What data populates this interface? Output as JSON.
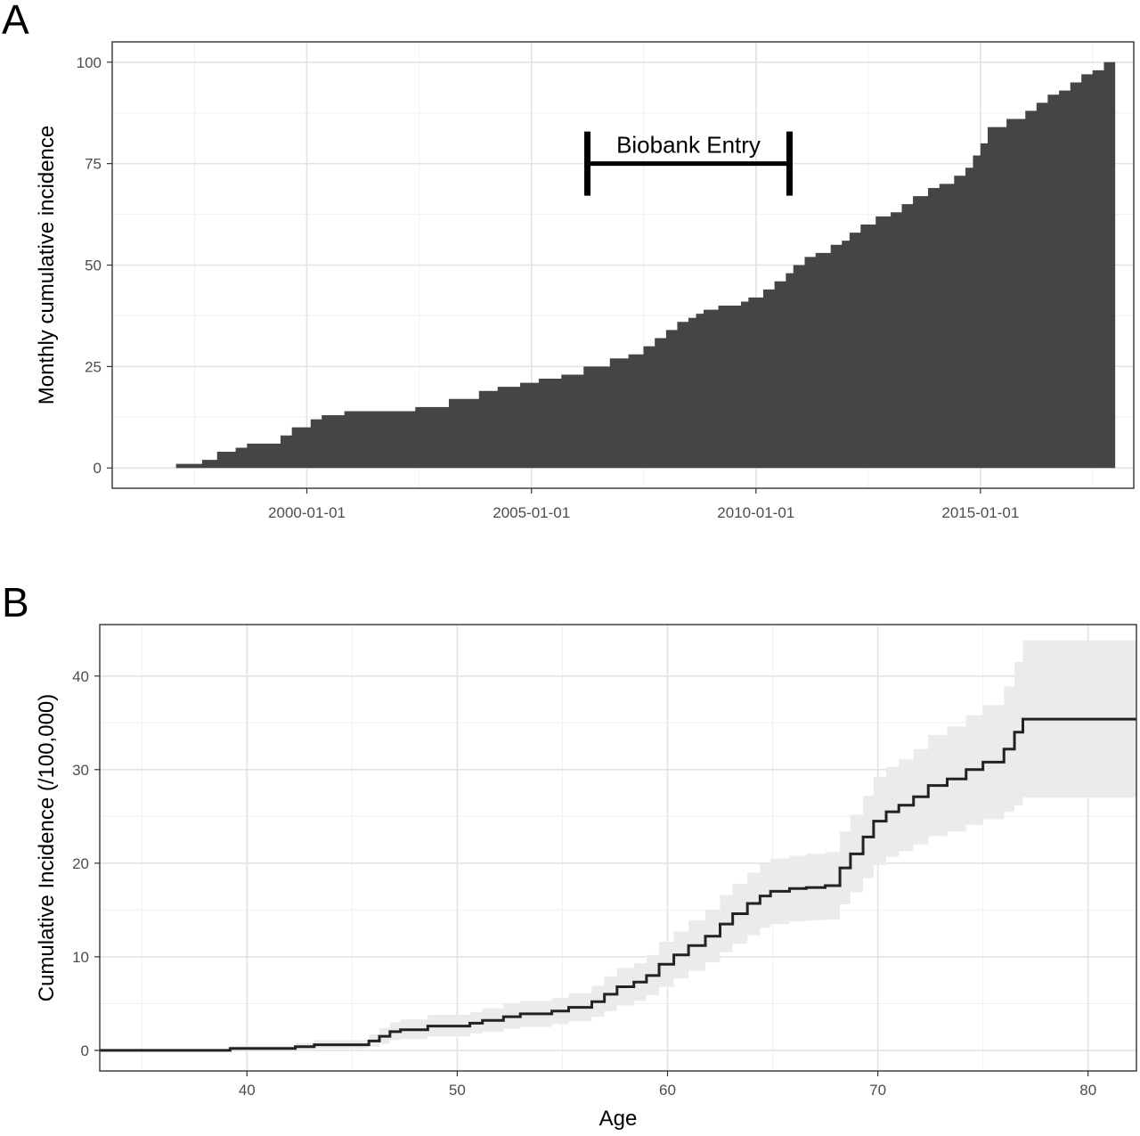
{
  "chart_data": [
    {
      "id": "A",
      "panel_label": "A",
      "type": "area",
      "style": "step",
      "ylabel": "Monthly cumulative incidence",
      "xlabel": "",
      "x_ticks": [
        "2000-01-01",
        "2005-01-01",
        "2010-01-01",
        "2015-01-01"
      ],
      "y_ticks": [
        "0",
        "25",
        "50",
        "75",
        "100"
      ],
      "xlim": [
        "1995-09-01",
        "2018-06-01"
      ],
      "ylim": [
        -5,
        105
      ],
      "grid": true,
      "fill_color": "#454545",
      "annotation": {
        "text": "Biobank Entry",
        "start": "2006-04-01",
        "end": "2010-10-01",
        "y": 75
      },
      "series": [
        {
          "x": [
            "1996-08-01",
            "1997-02-01",
            "1997-09-01",
            "1998-01-01",
            "1998-06-01",
            "1998-09-01",
            "1999-06-01",
            "1999-09-01",
            "2000-02-01",
            "2000-05-01",
            "2000-08-01",
            "2000-11-01",
            "2001-02-01",
            "2001-06-01",
            "2002-06-01",
            "2003-03-01",
            "2003-11-01",
            "2004-04-01",
            "2004-10-01",
            "2005-03-01",
            "2005-09-01",
            "2006-03-01",
            "2006-10-01",
            "2007-03-01",
            "2007-07-01",
            "2007-10-01",
            "2008-01-01",
            "2008-04-01",
            "2008-07-01",
            "2008-09-01",
            "2008-11-01",
            "2009-03-01",
            "2009-06-01",
            "2009-09-01",
            "2009-11-01",
            "2010-03-01",
            "2010-06-01",
            "2010-09-01",
            "2010-11-01",
            "2011-02-01",
            "2011-05-01",
            "2011-09-01",
            "2011-12-01",
            "2012-02-01",
            "2012-05-01",
            "2012-09-01",
            "2013-01-01",
            "2013-04-01",
            "2013-07-01",
            "2013-11-01",
            "2014-02-01",
            "2014-06-01",
            "2014-09-01",
            "2014-11-01",
            "2015-01-01",
            "2015-03-01",
            "2015-08-01",
            "2016-01-01",
            "2016-04-01",
            "2016-07-01",
            "2016-10-01",
            "2017-01-01",
            "2017-04-01",
            "2017-07-01",
            "2017-10-01",
            "2018-01-01"
          ],
          "y": [
            0,
            1,
            2,
            4,
            5,
            6,
            8,
            10,
            12,
            13,
            13,
            14,
            14,
            14,
            15,
            17,
            19,
            20,
            21,
            22,
            23,
            25,
            27,
            28,
            30,
            32,
            34,
            36,
            37,
            38,
            39,
            40,
            40,
            41,
            42,
            44,
            46,
            48,
            50,
            52,
            53,
            55,
            56,
            58,
            60,
            62,
            63,
            65,
            67,
            69,
            70,
            72,
            74,
            77,
            80,
            84,
            86,
            88,
            90,
            92,
            93,
            95,
            97,
            98,
            100,
            100
          ]
        }
      ]
    },
    {
      "id": "B",
      "panel_label": "B",
      "type": "line",
      "style": "step",
      "xlabel": "Age",
      "ylabel": "Cumulative Incidence (/100,000)",
      "x_ticks": [
        "40",
        "50",
        "60",
        "70",
        "80"
      ],
      "y_ticks": [
        "0",
        "10",
        "20",
        "30",
        "40"
      ],
      "xlim": [
        33,
        82.3
      ],
      "ylim": [
        -2.2,
        45.5
      ],
      "grid": true,
      "line_color": "#222222",
      "band_color": "#ebebeb",
      "series": [
        {
          "x": [
            33,
            39.2,
            42.3,
            43.2,
            45.8,
            46.3,
            46.8,
            47.3,
            48.6,
            50.6,
            51.2,
            52.2,
            53.0,
            54.5,
            55.3,
            56.4,
            57.0,
            57.6,
            58.4,
            59.0,
            59.6,
            60.3,
            61.0,
            61.8,
            62.5,
            63.1,
            63.8,
            64.4,
            64.9,
            65.8,
            66.6,
            67.5,
            68.2,
            68.7,
            69.3,
            69.8,
            70.4,
            71.0,
            71.7,
            72.4,
            73.3,
            74.2,
            75.0,
            76.0,
            76.5,
            76.9,
            82.3
          ],
          "y": [
            0,
            0.2,
            0.4,
            0.6,
            1.0,
            1.5,
            2.0,
            2.2,
            2.6,
            2.9,
            3.2,
            3.6,
            3.9,
            4.2,
            4.6,
            5.2,
            6.0,
            6.8,
            7.3,
            8.0,
            9.2,
            10.2,
            11.2,
            12.2,
            13.5,
            14.6,
            15.7,
            16.5,
            17.0,
            17.3,
            17.4,
            17.6,
            19.5,
            21.0,
            22.8,
            24.5,
            25.5,
            26.2,
            27.1,
            28.3,
            29.0,
            30.0,
            30.8,
            32.2,
            34.0,
            35.4,
            35.4
          ],
          "lower": [
            0,
            0,
            0.1,
            0.2,
            0.4,
            0.7,
            1.1,
            1.2,
            1.5,
            1.8,
            2.0,
            2.3,
            2.5,
            2.8,
            3.1,
            3.6,
            4.2,
            4.8,
            5.3,
            5.9,
            6.8,
            7.7,
            8.5,
            9.4,
            10.5,
            11.4,
            12.3,
            13.1,
            13.5,
            13.8,
            13.9,
            14.0,
            15.6,
            16.9,
            18.4,
            19.8,
            20.7,
            21.3,
            22.0,
            22.9,
            23.4,
            24.1,
            24.7,
            25.5,
            26.2,
            27.0,
            27.0
          ],
          "upper": [
            0,
            0.5,
            0.8,
            1.1,
            1.7,
            2.4,
            3.0,
            3.3,
            3.8,
            4.1,
            4.5,
            5.0,
            5.3,
            5.6,
            6.1,
            6.9,
            7.9,
            8.8,
            9.3,
            10.2,
            11.6,
            12.7,
            13.9,
            15.0,
            16.6,
            17.8,
            19.0,
            19.9,
            20.5,
            20.8,
            21.0,
            21.2,
            23.4,
            25.2,
            27.2,
            29.2,
            30.3,
            31.1,
            32.2,
            33.7,
            34.6,
            35.8,
            36.9,
            38.9,
            41.5,
            43.8,
            43.8
          ]
        }
      ]
    }
  ]
}
